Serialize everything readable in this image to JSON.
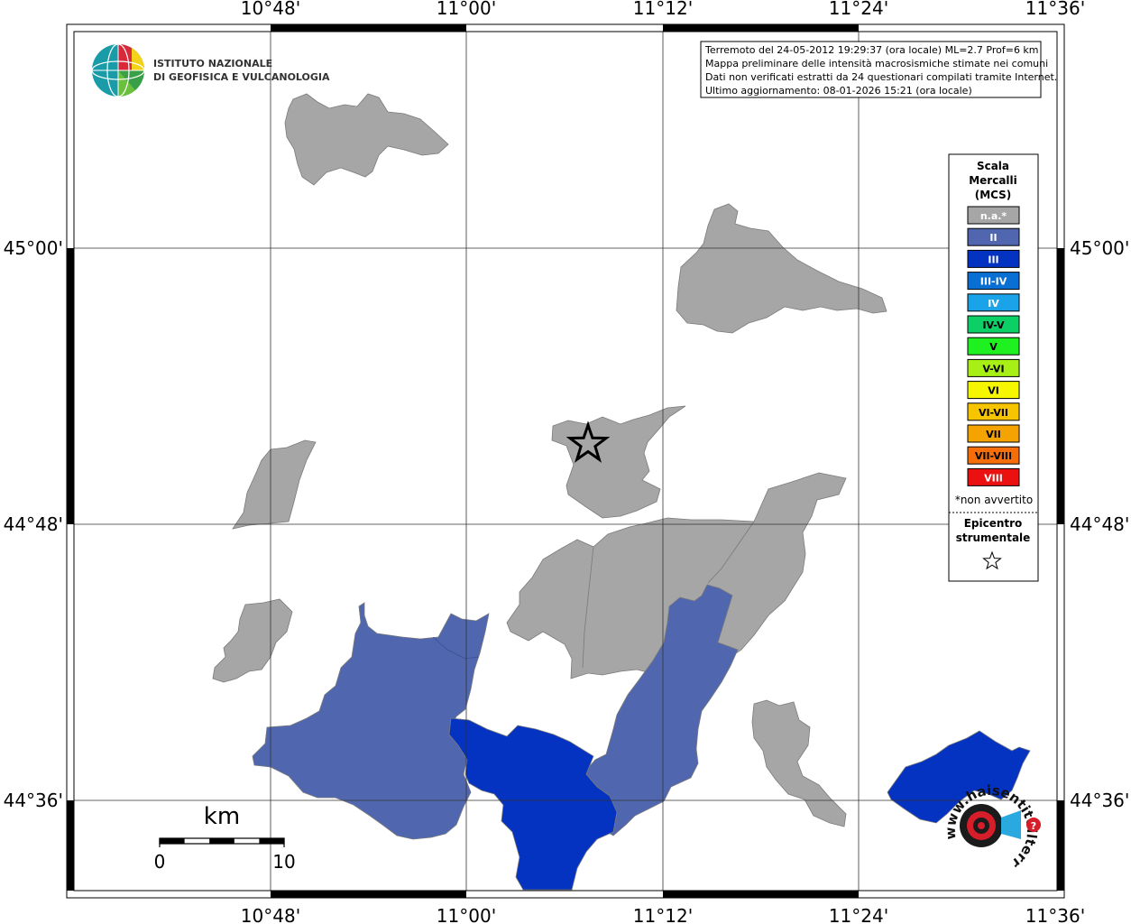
{
  "institute": {
    "line1": "ISTITUTO NAZIONALE",
    "line2": "DI GEOFISICA E VULCANOLOGIA"
  },
  "info": {
    "line1": "Terremoto del 24-05-2012 19:29:37 (ora locale) ML=2.7 Prof=6 km",
    "line2": "Mappa preliminare delle intensità macrosismiche stimate nei comuni",
    "line3": "Dati non verificati estratti da 24 questionari compilati tramite Internet.",
    "line4": "Ultimo aggiornamento: 08-01-2026 15:21 (ora locale)"
  },
  "axes": {
    "lon_ticks": [
      "10°48'",
      "11°00'",
      "11°12'",
      "11°24'",
      "11°36'"
    ],
    "lat_ticks": [
      "45°00'",
      "44°48'",
      "44°36'"
    ]
  },
  "legend": {
    "title1": "Scala",
    "title2": "Mercalli",
    "title3": "(MCS)",
    "classes": [
      {
        "label": "n.a.*",
        "color": "#a6a6a6",
        "text_color": "#ffffff"
      },
      {
        "label": "II",
        "color": "#5067b0",
        "text_color": "#ffffff"
      },
      {
        "label": "III",
        "color": "#0433c1",
        "text_color": "#ffffff"
      },
      {
        "label": "III-IV",
        "color": "#0a6fd3",
        "text_color": "#ffffff"
      },
      {
        "label": "IV",
        "color": "#1aa3e8",
        "text_color": "#ffffff"
      },
      {
        "label": "IV-V",
        "color": "#0ccf66",
        "text_color": "#000000"
      },
      {
        "label": "V",
        "color": "#1ff01f",
        "text_color": "#000000"
      },
      {
        "label": "V-VI",
        "color": "#a8ef16",
        "text_color": "#000000"
      },
      {
        "label": "VI",
        "color": "#f6f600",
        "text_color": "#000000"
      },
      {
        "label": "VI-VII",
        "color": "#f7c400",
        "text_color": "#000000"
      },
      {
        "label": "VII",
        "color": "#f5a300",
        "text_color": "#000000"
      },
      {
        "label": "VII-VIII",
        "color": "#f56e0a",
        "text_color": "#000000"
      },
      {
        "label": "VIII",
        "color": "#ec1111",
        "text_color": "#ffffff"
      }
    ],
    "not_felt": "*non avvertito",
    "epicenter1": "Epicentro",
    "epicenter2": "strumentale"
  },
  "scale_bar": {
    "unit": "km",
    "start": "0",
    "end": "10"
  },
  "watermark": "www.haisentitoilterremoto.it",
  "map_colors": {
    "na": "#a6a6a6",
    "II": "#5067b0",
    "III": "#0433c1"
  }
}
